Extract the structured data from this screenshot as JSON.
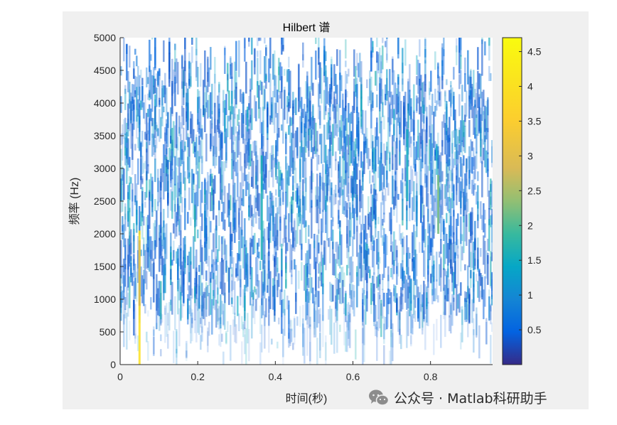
{
  "chart_data": {
    "type": "heatmap",
    "title": "Hilbert 谱",
    "xlabel": "时间(秒)",
    "ylabel": "频率 (Hz)",
    "xlim": [
      0,
      0.96
    ],
    "ylim": [
      0,
      5000
    ],
    "x_ticks": [
      "0",
      "0.2",
      "0.4",
      "0.6",
      "0.8"
    ],
    "x_tick_values": [
      0,
      0.2,
      0.4,
      0.6,
      0.8
    ],
    "y_ticks": [
      "0",
      "500",
      "1000",
      "1500",
      "2000",
      "2500",
      "3000",
      "3500",
      "4000",
      "4500",
      "5000"
    ],
    "y_tick_values": [
      0,
      500,
      1000,
      1500,
      2000,
      2500,
      3000,
      3500,
      4000,
      4500,
      5000
    ],
    "colorbar": {
      "range": [
        0,
        4.7
      ],
      "ticks": [
        "0.5",
        "1",
        "1.5",
        "2",
        "2.5",
        "3",
        "3.5",
        "4",
        "4.5"
      ],
      "tick_values": [
        0.5,
        1,
        1.5,
        2,
        2.5,
        3,
        3.5,
        4,
        4.5
      ],
      "colormap": "parula"
    },
    "highlights": [
      {
        "time": 0.05,
        "freq_min": 0,
        "freq_max": 2050,
        "value": 4.0
      },
      {
        "time": 0.05,
        "freq_min": 900,
        "freq_max": 1900,
        "value": 2.8
      },
      {
        "time": 0.82,
        "freq_min": 2000,
        "freq_max": 2900,
        "value": 2.2
      },
      {
        "time": 0.365,
        "freq_min": 1600,
        "freq_max": 3200,
        "value": 1.6
      },
      {
        "time": 0.74,
        "freq_min": 2500,
        "freq_max": 3600,
        "value": 1.5
      }
    ],
    "grid": false
  },
  "watermark": {
    "text": "公众号 · Matlab科研助手"
  }
}
